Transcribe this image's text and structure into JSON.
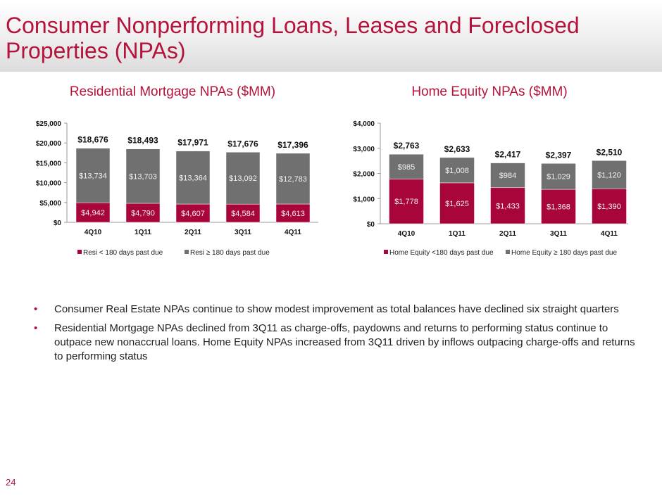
{
  "title": "Consumer Nonperforming Loans, Leases and Foreclosed Properties (NPAs)",
  "page_number": "24",
  "bullets": [
    "Consumer Real Estate NPAs continue to show modest improvement as total balances have declined six straight quarters",
    "Residential Mortgage NPAs declined from 3Q11 as charge-offs, paydowns and returns to performing status continue to outpace new nonaccrual loans. Home Equity NPAs increased from 3Q11 driven by inflows outpacing charge-offs and returns to performing status"
  ],
  "bullet_glyph": "•",
  "colors": {
    "red": "#a8063a",
    "gray": "#707070",
    "title": "#b5133a"
  },
  "chart_data": [
    {
      "type": "bar",
      "stacked": true,
      "title": "Residential Mortgage NPAs ($MM)",
      "categories": [
        "4Q10",
        "1Q11",
        "2Q11",
        "3Q11",
        "4Q11"
      ],
      "series": [
        {
          "name": "Resi < 180 days past due",
          "values": [
            4942,
            4790,
            4607,
            4584,
            4613
          ],
          "labels": [
            "$4,942",
            "$4,790",
            "$4,607",
            "$4,584",
            "$4,613"
          ],
          "color": "#a8063a"
        },
        {
          "name": "Resi ≥ 180 days past due",
          "values": [
            13734,
            13703,
            13364,
            13092,
            12783
          ],
          "labels": [
            "$13,734",
            "$13,703",
            "$13,364",
            "$13,092",
            "$12,783"
          ],
          "color": "#707070"
        }
      ],
      "totals": [
        "$18,676",
        "$18,493",
        "$17,971",
        "$17,676",
        "$17,396"
      ],
      "ylim": [
        0,
        25000
      ],
      "yticks": [
        0,
        5000,
        10000,
        15000,
        20000,
        25000
      ],
      "ytick_labels": [
        "$0",
        "$5,000",
        "$10,000",
        "$15,000",
        "$20,000",
        "$25,000"
      ],
      "legend": "bottom",
      "grid": false
    },
    {
      "type": "bar",
      "stacked": true,
      "title": "Home Equity NPAs ($MM)",
      "categories": [
        "4Q10",
        "1Q11",
        "2Q11",
        "3Q11",
        "4Q11"
      ],
      "series": [
        {
          "name": "Home Equity <180 days past due",
          "values": [
            1778,
            1625,
            1433,
            1368,
            1390
          ],
          "labels": [
            "$1,778",
            "$1,625",
            "$1,433",
            "$1,368",
            "$1,390"
          ],
          "color": "#a8063a"
        },
        {
          "name": "Home Equity ≥ 180 days past due",
          "values": [
            985,
            1008,
            984,
            1029,
            1120
          ],
          "labels": [
            "$985",
            "$1,008",
            "$984",
            "$1,029",
            "$1,120"
          ],
          "color": "#707070"
        }
      ],
      "totals": [
        "$2,763",
        "$2,633",
        "$2,417",
        "$2,397",
        "$2,510"
      ],
      "ylim": [
        0,
        4000
      ],
      "yticks": [
        0,
        1000,
        2000,
        3000,
        4000
      ],
      "ytick_labels": [
        "$0",
        "$1,000",
        "$2,000",
        "$3,000",
        "$4,000"
      ],
      "legend": "bottom",
      "grid": false
    }
  ]
}
